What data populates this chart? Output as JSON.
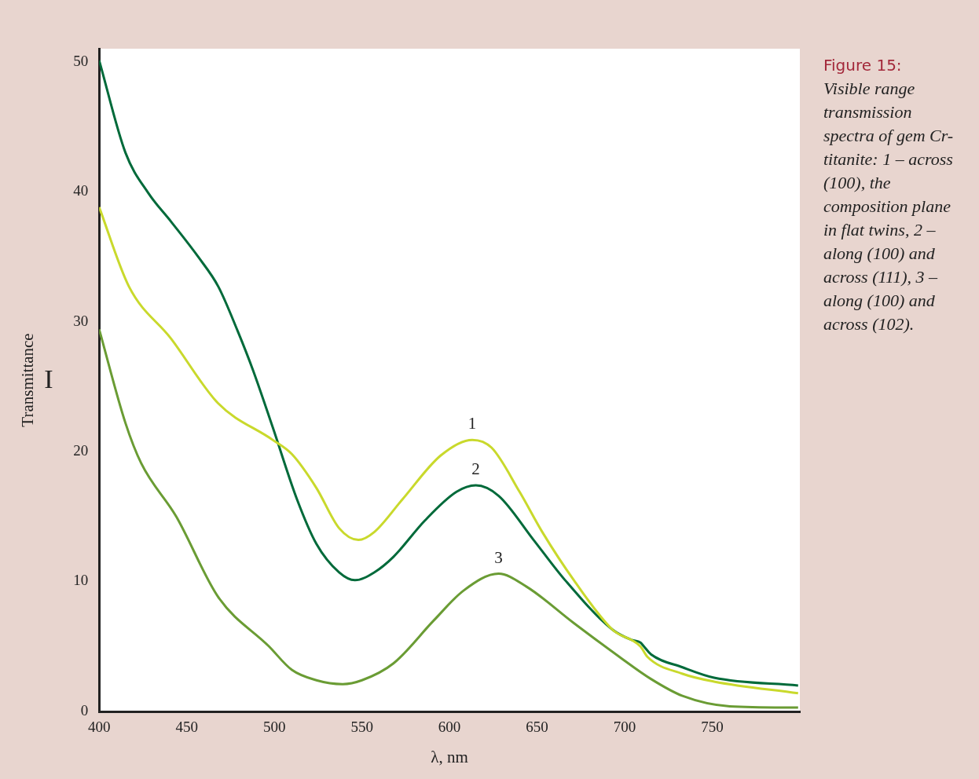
{
  "chart_data": {
    "type": "line",
    "title": "Figure 15:",
    "subtitle": "Visible range transmission spectra of gem Cr-titanite: 1 – across (100), the composition plane in flat twins, 2 – along (100) and across (111), 3 – along (100) and across (102).",
    "xlabel": "λ, nm",
    "ylabel": "Transmittance",
    "annotations": [
      "I"
    ],
    "xlim": [
      400,
      800
    ],
    "ylim": [
      0,
      51
    ],
    "xticks": [
      400,
      450,
      500,
      550,
      600,
      650,
      700,
      750
    ],
    "yticks": [
      0,
      10,
      20,
      30,
      40,
      50
    ],
    "grid": false,
    "legend": false,
    "marker": "none",
    "line_style": "solid",
    "series": [
      {
        "name": "1",
        "color": "#c9d92c",
        "x": [
          400,
          417,
          441,
          468,
          499,
          510,
          524,
          537,
          548,
          557,
          573,
          595,
          613,
          624,
          640,
          653,
          671,
          693,
          709,
          713,
          733,
          751,
          799
        ],
        "values": [
          38.8,
          32.7,
          28.7,
          23.7,
          20.9,
          19.8,
          17.2,
          14.1,
          13.2,
          13.8,
          16.3,
          19.7,
          20.9,
          20.3,
          16.9,
          13.8,
          10.1,
          6.3,
          5.0,
          4.2,
          2.9,
          2.3,
          1.4
        ]
      },
      {
        "name": "2",
        "color": "#006a3a",
        "x": [
          400,
          415,
          428,
          441,
          457,
          468,
          479,
          488,
          499,
          513,
          524,
          537,
          546,
          557,
          568,
          586,
          604,
          615,
          628,
          648,
          666,
          693,
          704,
          709,
          711,
          715,
          733,
          751,
          799
        ],
        "values": [
          50.1,
          43.0,
          39.9,
          37.7,
          34.9,
          32.7,
          29.3,
          26.2,
          21.9,
          16.3,
          12.9,
          10.7,
          10.1,
          10.7,
          11.9,
          14.7,
          16.9,
          17.4,
          16.6,
          13.2,
          10.1,
          6.3,
          5.5,
          5.3,
          5.0,
          4.4,
          3.4,
          2.6,
          2.0
        ]
      },
      {
        "name": "3",
        "color": "#6a9c34",
        "x": [
          400,
          415,
          424,
          444,
          468,
          497,
          510,
          524,
          539,
          550,
          568,
          591,
          608,
          628,
          644,
          671,
          697,
          715,
          733,
          760,
          799
        ],
        "values": [
          29.4,
          22.2,
          19.1,
          15.0,
          8.8,
          5.0,
          3.2,
          2.4,
          2.1,
          2.4,
          3.7,
          7.0,
          9.3,
          10.6,
          9.6,
          6.8,
          4.2,
          2.5,
          1.2,
          0.4,
          0.3
        ]
      }
    ]
  }
}
